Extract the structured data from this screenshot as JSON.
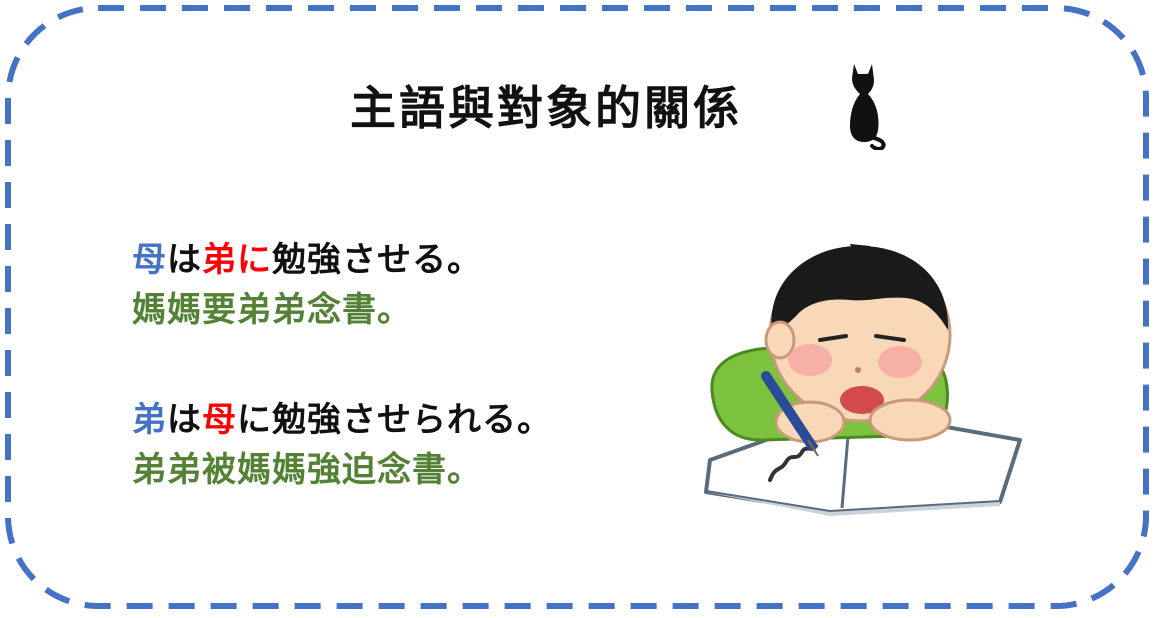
{
  "title": "主語與對象的關係",
  "examples": [
    {
      "japanese": {
        "subject": "母",
        "p1": "は",
        "object": "弟",
        "p2": "に",
        "rest": "勉強させる。"
      },
      "translation": "媽媽要弟弟念書。"
    },
    {
      "japanese": {
        "subject": "弟",
        "p1": "は",
        "object": "母",
        "p2": "に",
        "rest": "勉強させられる。"
      },
      "translation": "弟弟被媽媽強迫念書。"
    }
  ],
  "colors": {
    "border": "#4472c4",
    "subject": "#4472c4",
    "object": "#ff0000",
    "text": "#111111",
    "translation": "#548235"
  },
  "icons": [
    "cat-silhouette-icon",
    "studying-boy-illustration"
  ]
}
